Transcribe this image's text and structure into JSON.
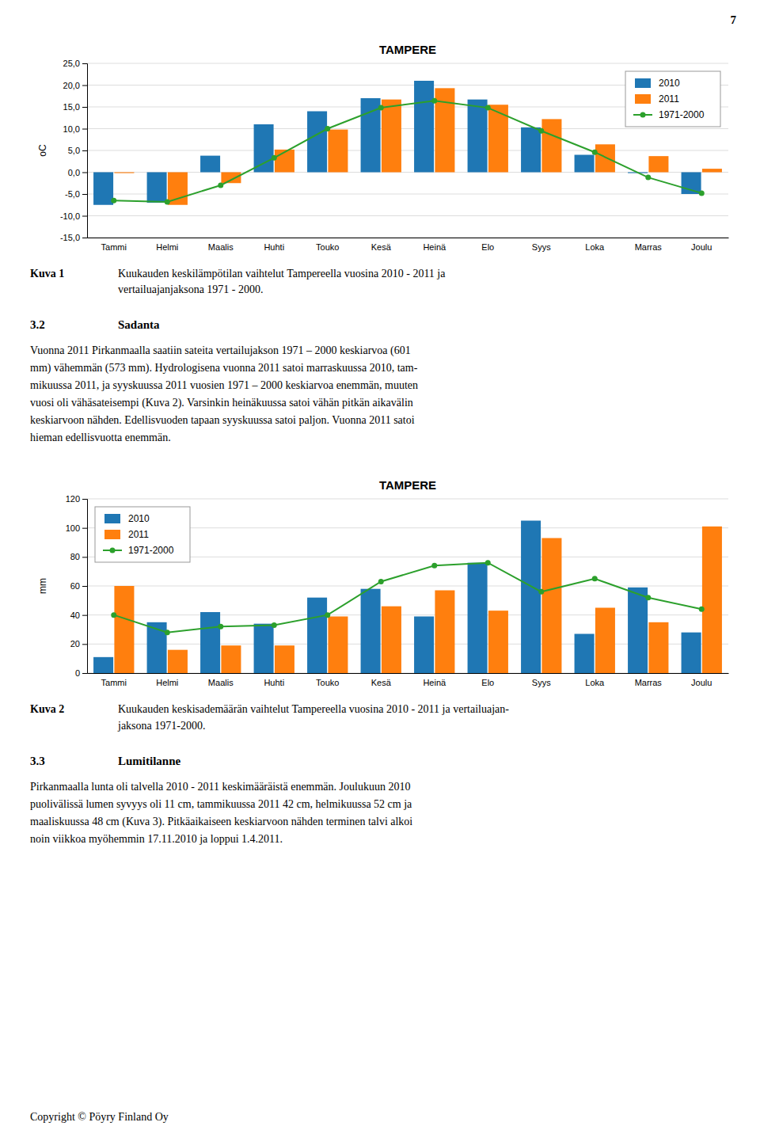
{
  "texts": {
    "page_number": "7",
    "kuva1_label": "Kuva 1",
    "kuva1_caption": "Kuukauden keskilämpötilan vaihtelut Tampereella vuosina 2010 - 2011 ja\nvertailuajanjaksona 1971 - 2000.",
    "section_32": "3.2",
    "section_32_title": "Sadanta",
    "section_32_text": [
      "Vuonna 2011 Pirkanmaalla saatiin sateita vertailujakson 1971 – 2000 keskiarvoa (601",
      "mm) vähemmän (573 mm). Hydrologisena vuonna 2011 satoi marraskuussa 2010, tam-",
      "mikuussa 2011, ja syyskuussa 2011 vuosien 1971 – 2000 keskiarvoa enemmän, muuten",
      "vuosi oli vähäsateisempi (Kuva 2). Varsinkin heinäkuussa satoi vähän pitkän aikavälin",
      "keskiarvoon nähden. Edellisvuoden tapaan syyskuussa satoi paljon. Vuonna 2011 satoi",
      "hieman edellisvuotta enemmän."
    ],
    "kuva2_label": "Kuva 2",
    "kuva2_caption": [
      "Kuukauden keskisademäärän vaihtelut Tampereella vuosina 2010 - 2011 ja vertailuajan-",
      "jaksona 1971-2000."
    ],
    "section_33": "3.3",
    "section_33_title": "Lumitilanne",
    "section_33_text": [
      "Pirkanmaalla lunta oli talvella 2010 - 2011 keskimääräistä enemmän. Joulukuun 2010",
      "puolivälissä lumen syvyys oli 11 cm, tammikuussa 2011 42 cm, helmikuussa 52 cm ja",
      "maaliskuussa 48 cm (Kuva 3). Pitkäaikaiseen keskiarvoon nähden terminen talvi alkoi",
      "noin viikkoa myöhemmin 17.11.2010 ja loppui 1.4.2011."
    ],
    "copyright": "Copyright © Pöyry Finland Oy"
  },
  "chart_data": [
    {
      "type": "bar",
      "title": "TAMPERE",
      "ylabel": "oC",
      "categories": [
        "Tammi",
        "Helmi",
        "Maalis",
        "Huhti",
        "Touko",
        "Kesä",
        "Heinä",
        "Elo",
        "Syys",
        "Loka",
        "Marras",
        "Joulu"
      ],
      "series": [
        {
          "name": "2010",
          "values": [
            -7.5,
            -7.0,
            3.8,
            11.0,
            14.0,
            17.0,
            21.0,
            16.7,
            10.3,
            4.0,
            -0.2,
            -5.0
          ]
        },
        {
          "name": "2011",
          "values": [
            -0.2,
            -7.5,
            -2.5,
            5.2,
            9.8,
            16.7,
            19.3,
            15.5,
            12.2,
            6.4,
            3.7,
            0.8
          ]
        },
        {
          "name": "1971-2000",
          "type": "line",
          "marker": "circle",
          "values": [
            -6.5,
            -6.8,
            -3.0,
            3.3,
            10.0,
            14.8,
            16.4,
            14.8,
            9.5,
            4.6,
            -1.2,
            -4.8
          ]
        }
      ],
      "ylim": [
        -15.0,
        25.0
      ],
      "yticks": [
        {
          "value": -15.0,
          "label": "-15,0"
        },
        {
          "value": -10.0,
          "label": "-10,0"
        },
        {
          "value": -5.0,
          "label": "-5,0"
        },
        {
          "value": 0.0,
          "label": "0,0"
        },
        {
          "value": 5.0,
          "label": "5,0"
        },
        {
          "value": 10.0,
          "label": "10,0"
        },
        {
          "value": 15.0,
          "label": "15,0"
        },
        {
          "value": 20.0,
          "label": "20,0"
        },
        {
          "value": 25.0,
          "label": "25,0"
        }
      ],
      "grid": true,
      "legend": "upper right"
    },
    {
      "type": "bar",
      "title": "TAMPERE",
      "ylabel": "mm",
      "categories": [
        "Tammi",
        "Helmi",
        "Maalis",
        "Huhti",
        "Touko",
        "Kesä",
        "Heinä",
        "Elo",
        "Syys",
        "Loka",
        "Marras",
        "Joulu"
      ],
      "series": [
        {
          "name": "2010",
          "values": [
            11,
            35,
            42,
            34,
            52,
            58,
            39,
            76,
            105,
            27,
            59,
            28
          ]
        },
        {
          "name": "2011",
          "values": [
            60,
            16,
            19,
            19,
            39,
            46,
            57,
            43,
            93,
            45,
            35,
            101
          ]
        },
        {
          "name": "1971-2000",
          "type": "line",
          "marker": "circle",
          "values": [
            40,
            28,
            32,
            33,
            40,
            63,
            74,
            76,
            56,
            65,
            52,
            44
          ]
        }
      ],
      "ylim": [
        0,
        120
      ],
      "yticks": [
        0,
        20,
        40,
        60,
        80,
        100,
        120
      ],
      "grid": true,
      "legend": "upper left"
    }
  ]
}
